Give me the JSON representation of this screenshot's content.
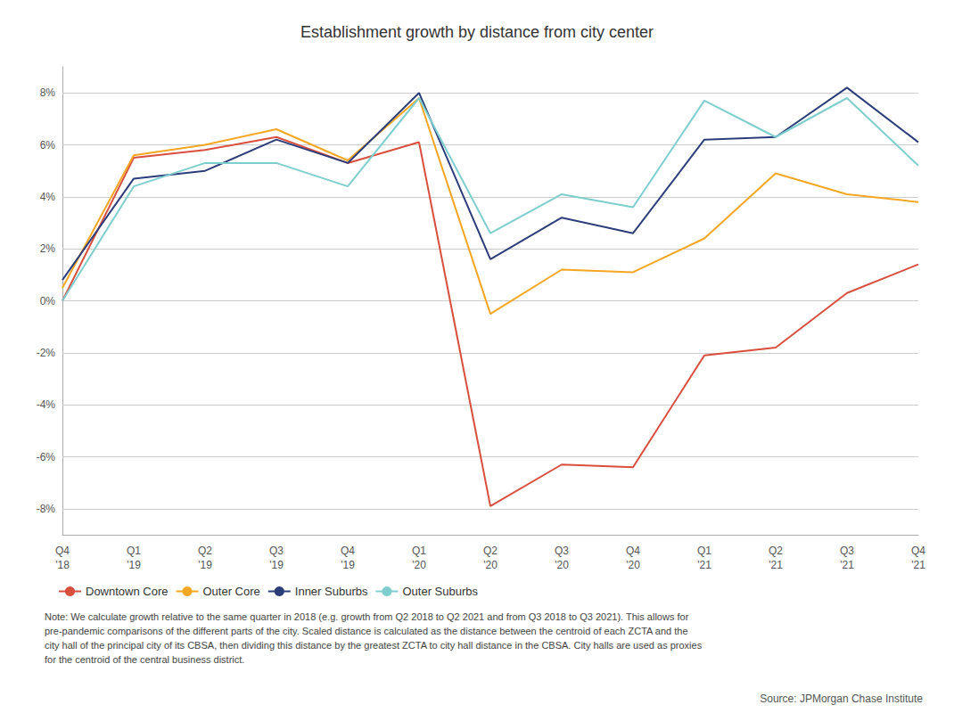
{
  "chart_data": {
    "type": "line",
    "title": "Establishment growth by distance from city center",
    "categories": [
      "Q4\n'18",
      "Q1\n'19",
      "Q2\n'19",
      "Q3\n'19",
      "Q4\n'19",
      "Q1\n'20",
      "Q2\n'20",
      "Q3\n'20",
      "Q4\n'20",
      "Q1\n'21",
      "Q2\n'21",
      "Q3\n'21",
      "Q4\n'21"
    ],
    "series": [
      {
        "name": "Downtown Core",
        "color": "#d94f3d",
        "values": [
          0.0,
          5.5,
          5.8,
          6.3,
          5.3,
          6.1,
          -7.9,
          -6.3,
          -6.4,
          -2.1,
          -1.8,
          0.3,
          1.4
        ]
      },
      {
        "name": "Outer Core",
        "color": "#f5a623",
        "values": [
          0.5,
          5.6,
          6.0,
          6.6,
          5.4,
          7.8,
          -0.5,
          1.2,
          1.1,
          2.4,
          4.9,
          4.1,
          3.8
        ]
      },
      {
        "name": "Inner Suburbs",
        "color": "#2c3e7a",
        "values": [
          0.8,
          4.7,
          5.0,
          6.2,
          5.3,
          8.0,
          1.6,
          3.2,
          2.6,
          6.2,
          6.3,
          8.2,
          6.1
        ]
      },
      {
        "name": "Outer Suburbs",
        "color": "#7ecece",
        "values": [
          0.0,
          4.4,
          5.3,
          5.3,
          4.4,
          7.8,
          2.6,
          4.1,
          3.6,
          7.7,
          6.3,
          7.8,
          5.2
        ]
      }
    ],
    "ylim": [
      -9,
      9
    ],
    "yticks": [
      {
        "value": -8,
        "label": "-8%"
      },
      {
        "value": -6,
        "label": "-6%"
      },
      {
        "value": -4,
        "label": "-4%"
      },
      {
        "value": -2,
        "label": "-2%"
      },
      {
        "value": 0,
        "label": "0%"
      },
      {
        "value": 2,
        "label": "2%"
      },
      {
        "value": 4,
        "label": "4%"
      },
      {
        "value": 6,
        "label": "6%"
      },
      {
        "value": 8,
        "label": "8%"
      }
    ],
    "grid": true,
    "legend": "lower left",
    "annotations": [
      "Note: We calculate growth relative to the same quarter in 2018 (e.g. growth from Q2 2018 to Q2 2021 and from Q3 2018 to Q3 2021). This allows for\npre-pandemic comparisons of the different parts of the city. Scaled distance is calculated as the distance between the centroid of each ZCTA and the\ncity hall of the principal city of its CBSA, then dividing this distance by the greatest ZCTA to city hall distance in the CBSA. City halls are used as proxies\nfor the centroid of the central business district.",
      "Source: JPMorgan Chase Institute"
    ]
  }
}
